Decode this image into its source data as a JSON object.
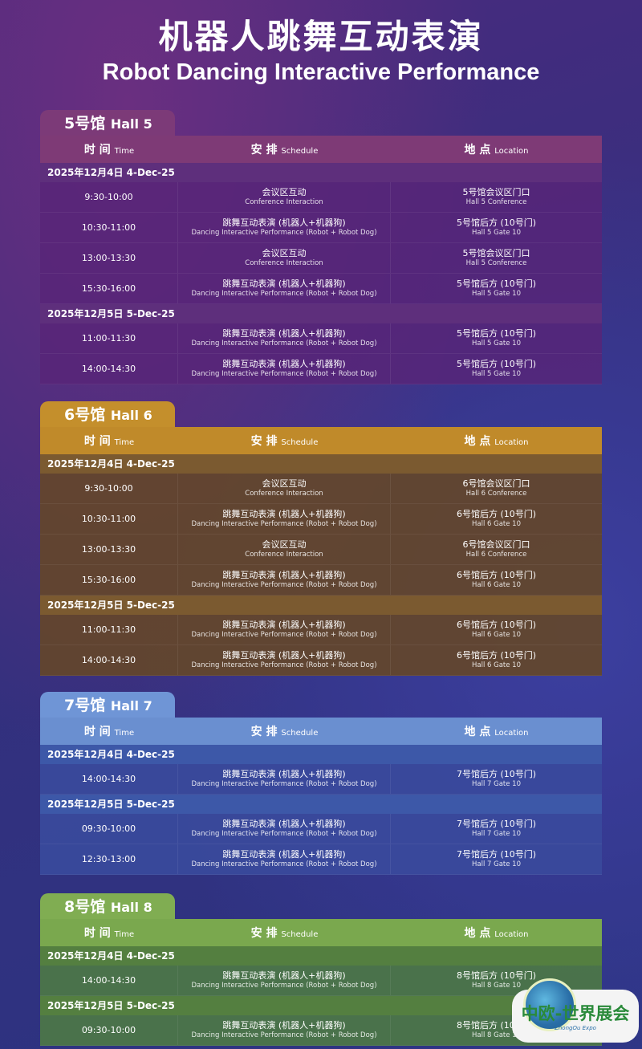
{
  "title": {
    "cn": "机器人跳舞互动表演",
    "en": "Robot Dancing Interactive Performance"
  },
  "headers": {
    "time_cn": "时 间",
    "time_en": "Time",
    "schedule_cn": "安 排",
    "schedule_en": "Schedule",
    "location_cn": "地 点",
    "location_en": "Location"
  },
  "logo": {
    "cn": "中欧-世界展会",
    "en": "ZhongOu Expo"
  },
  "sections": [
    {
      "cn": "5号馆",
      "en": "Hall 5",
      "colors": {
        "tab": "#7c3a78",
        "header": "#7e3a76",
        "date": "#5e2f7c",
        "row": "rgba(88,36,120,.82)"
      },
      "days": [
        {
          "date": "2025年12月4日 4-Dec-25",
          "rows": [
            [
              "9:30-10:00",
              "会议区互动",
              "Conference Interaction",
              "5号馆会议区门口",
              "Hall 5 Conference"
            ],
            [
              "10:30-11:00",
              "跳舞互动表演 (机器人+机器狗)",
              "Dancing Interactive Performance (Robot + Robot Dog)",
              "5号馆后方 (10号门)",
              "Hall 5 Gate 10"
            ],
            [
              "13:00-13:30",
              "会议区互动",
              "Conference Interaction",
              "5号馆会议区门口",
              "Hall 5 Conference"
            ],
            [
              "15:30-16:00",
              "跳舞互动表演 (机器人+机器狗)",
              "Dancing Interactive Performance (Robot + Robot Dog)",
              "5号馆后方 (10号门)",
              "Hall 5 Gate 10"
            ]
          ]
        },
        {
          "date": "2025年12月5日 5-Dec-25",
          "rows": [
            [
              "11:00-11:30",
              "跳舞互动表演 (机器人+机器狗)",
              "Dancing Interactive Performance (Robot + Robot Dog)",
              "5号馆后方 (10号门)",
              "Hall 5 Gate 10"
            ],
            [
              "14:00-14:30",
              "跳舞互动表演 (机器人+机器狗)",
              "Dancing Interactive Performance (Robot + Robot Dog)",
              "5号馆后方 (10号门)",
              "Hall 5 Gate 10"
            ]
          ]
        }
      ]
    },
    {
      "cn": "6号馆",
      "en": "Hall 6",
      "colors": {
        "tab": "#c48f2c",
        "header": "#c08a2a",
        "date": "#7b5a30",
        "row": "rgba(100,70,42,.92)"
      },
      "days": [
        {
          "date": "2025年12月4日 4-Dec-25",
          "rows": [
            [
              "9:30-10:00",
              "会议区互动",
              "Conference Interaction",
              "6号馆会议区门口",
              "Hall 6 Conference"
            ],
            [
              "10:30-11:00",
              "跳舞互动表演 (机器人+机器狗)",
              "Dancing Interactive Performance (Robot + Robot Dog)",
              "6号馆后方 (10号门)",
              "Hall 6 Gate 10"
            ],
            [
              "13:00-13:30",
              "会议区互动",
              "Conference Interaction",
              "6号馆会议区门口",
              "Hall 6 Conference"
            ],
            [
              "15:30-16:00",
              "跳舞互动表演 (机器人+机器狗)",
              "Dancing Interactive Performance (Robot + Robot Dog)",
              "6号馆后方 (10号门)",
              "Hall 6 Gate 10"
            ]
          ]
        },
        {
          "date": "2025年12月5日 5-Dec-25",
          "rows": [
            [
              "11:00-11:30",
              "跳舞互动表演 (机器人+机器狗)",
              "Dancing Interactive Performance (Robot + Robot Dog)",
              "6号馆后方 (10号门)",
              "Hall 6 Gate 10"
            ],
            [
              "14:00-14:30",
              "跳舞互动表演 (机器人+机器狗)",
              "Dancing Interactive Performance (Robot + Robot Dog)",
              "6号馆后方 (10号门)",
              "Hall 6 Gate 10"
            ]
          ]
        }
      ]
    },
    {
      "cn": "7号馆",
      "en": "Hall 7",
      "colors": {
        "tab": "#6f95d6",
        "header": "#6a8fd0",
        "date": "#3d58a8",
        "row": "rgba(58,74,156,.92)"
      },
      "days": [
        {
          "date": "2025年12月4日 4-Dec-25",
          "rows": [
            [
              "14:00-14:30",
              "跳舞互动表演 (机器人+机器狗)",
              "Dancing Interactive Performance (Robot + Robot Dog)",
              "7号馆后方 (10号门)",
              "Hall 7 Gate 10"
            ]
          ]
        },
        {
          "date": "2025年12月5日 5-Dec-25",
          "rows": [
            [
              "09:30-10:00",
              "跳舞互动表演 (机器人+机器狗)",
              "Dancing Interactive Performance (Robot + Robot Dog)",
              "7号馆后方 (10号门)",
              "Hall 7 Gate 10"
            ],
            [
              "12:30-13:00",
              "跳舞互动表演 (机器人+机器狗)",
              "Dancing Interactive Performance (Robot + Robot Dog)",
              "7号馆后方 (10号门)",
              "Hall 7 Gate 10"
            ]
          ]
        }
      ]
    },
    {
      "cn": "8号馆",
      "en": "Hall 8",
      "colors": {
        "tab": "#80ad52",
        "header": "#7aa84e",
        "date": "#547f40",
        "row": "rgba(76,118,72,.95)"
      },
      "days": [
        {
          "date": "2025年12月4日 4-Dec-25",
          "rows": [
            [
              "14:00-14:30",
              "跳舞互动表演 (机器人+机器狗)",
              "Dancing Interactive Performance (Robot + Robot Dog)",
              "8号馆后方 (10号门)",
              "Hall 8 Gate 10"
            ]
          ]
        },
        {
          "date": "2025年12月5日 5-Dec-25",
          "rows": [
            [
              "09:30-10:00",
              "跳舞互动表演 (机器人+机器狗)",
              "Dancing Interactive Performance (Robot + Robot Dog)",
              "8号馆后方 (10号门)",
              "Hall 8 Gate 10"
            ]
          ]
        }
      ]
    }
  ]
}
